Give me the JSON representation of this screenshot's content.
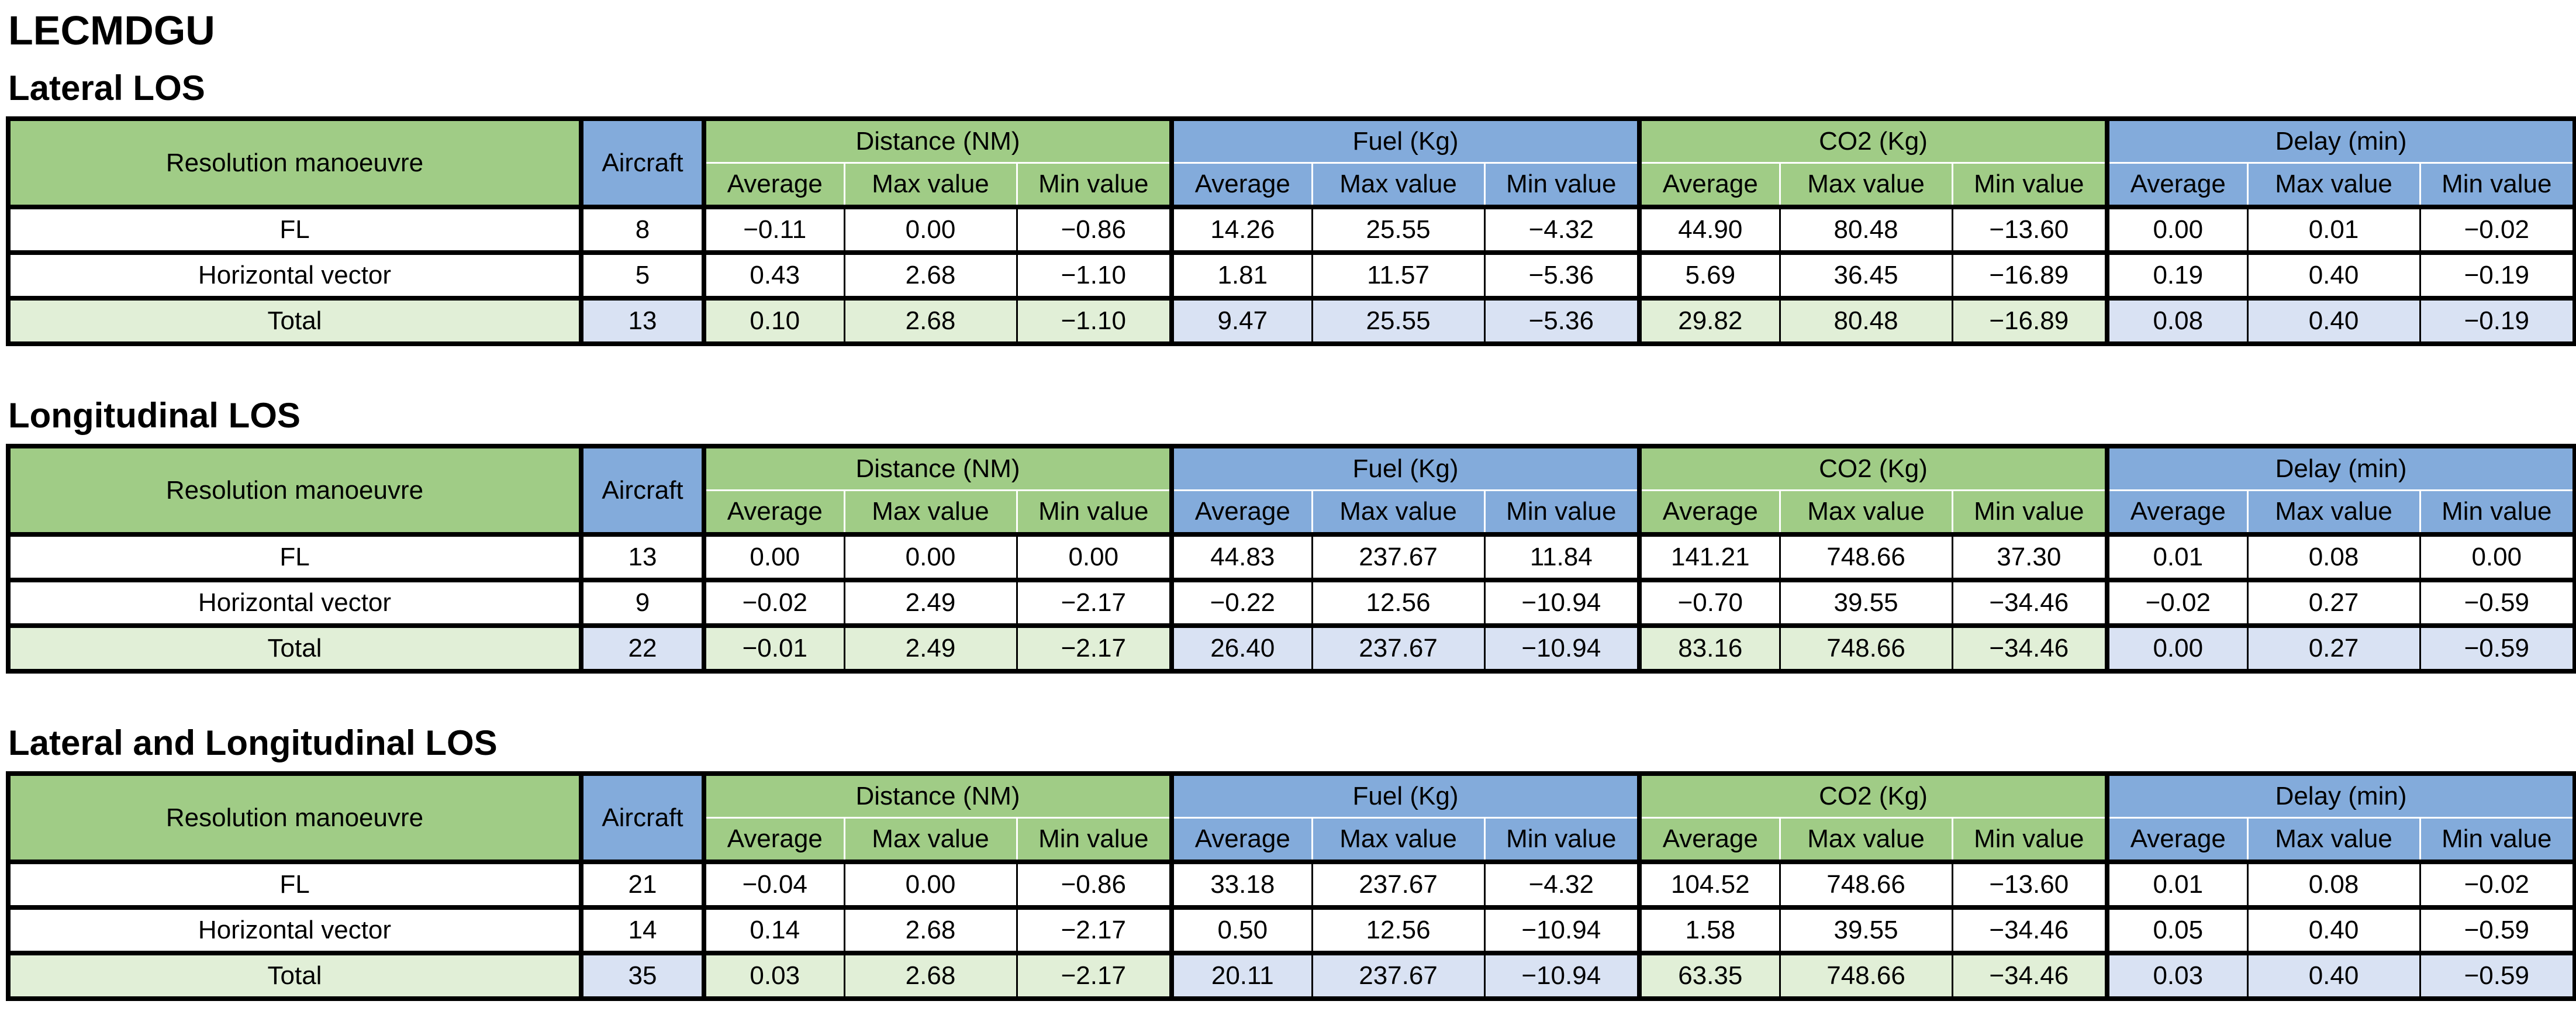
{
  "page_title": "LECMDGU",
  "colors": {
    "header_green": "#a0cc86",
    "header_blue": "#83abdb",
    "total_row_green": "#e1efd7",
    "total_row_blue": "#d9e2f3",
    "border": "#000000",
    "background": "#ffffff"
  },
  "headers": {
    "resolution_label": "Resolution manoeuvre",
    "aircraft_label": "Aircraft",
    "sub_columns": [
      "Average",
      "Max value",
      "Min value"
    ],
    "groups": [
      {
        "label": "Distance (NM)",
        "tone": "green"
      },
      {
        "label": "Fuel (Kg)",
        "tone": "blue"
      },
      {
        "label": "CO2 (Kg)",
        "tone": "green"
      },
      {
        "label": "Delay (min)",
        "tone": "blue"
      }
    ]
  },
  "tables": [
    {
      "section_title": "Lateral LOS",
      "rows": [
        {
          "label": "FL",
          "aircraft": "8",
          "is_total": false,
          "values": [
            [
              "−0.11",
              "0.00",
              "−0.86"
            ],
            [
              "14.26",
              "25.55",
              "−4.32"
            ],
            [
              "44.90",
              "80.48",
              "−13.60"
            ],
            [
              "0.00",
              "0.01",
              "−0.02"
            ]
          ]
        },
        {
          "label": "Horizontal vector",
          "aircraft": "5",
          "is_total": false,
          "values": [
            [
              "0.43",
              "2.68",
              "−1.10"
            ],
            [
              "1.81",
              "11.57",
              "−5.36"
            ],
            [
              "5.69",
              "36.45",
              "−16.89"
            ],
            [
              "0.19",
              "0.40",
              "−0.19"
            ]
          ]
        },
        {
          "label": "Total",
          "aircraft": "13",
          "is_total": true,
          "values": [
            [
              "0.10",
              "2.68",
              "−1.10"
            ],
            [
              "9.47",
              "25.55",
              "−5.36"
            ],
            [
              "29.82",
              "80.48",
              "−16.89"
            ],
            [
              "0.08",
              "0.40",
              "−0.19"
            ]
          ]
        }
      ]
    },
    {
      "section_title": "Longitudinal LOS",
      "rows": [
        {
          "label": "FL",
          "aircraft": "13",
          "is_total": false,
          "values": [
            [
              "0.00",
              "0.00",
              "0.00"
            ],
            [
              "44.83",
              "237.67",
              "11.84"
            ],
            [
              "141.21",
              "748.66",
              "37.30"
            ],
            [
              "0.01",
              "0.08",
              "0.00"
            ]
          ]
        },
        {
          "label": "Horizontal vector",
          "aircraft": "9",
          "is_total": false,
          "values": [
            [
              "−0.02",
              "2.49",
              "−2.17"
            ],
            [
              "−0.22",
              "12.56",
              "−10.94"
            ],
            [
              "−0.70",
              "39.55",
              "−34.46"
            ],
            [
              "−0.02",
              "0.27",
              "−0.59"
            ]
          ]
        },
        {
          "label": "Total",
          "aircraft": "22",
          "is_total": true,
          "values": [
            [
              "−0.01",
              "2.49",
              "−2.17"
            ],
            [
              "26.40",
              "237.67",
              "−10.94"
            ],
            [
              "83.16",
              "748.66",
              "−34.46"
            ],
            [
              "0.00",
              "0.27",
              "−0.59"
            ]
          ]
        }
      ]
    },
    {
      "section_title": "Lateral and Longitudinal LOS",
      "rows": [
        {
          "label": "FL",
          "aircraft": "21",
          "is_total": false,
          "values": [
            [
              "−0.04",
              "0.00",
              "−0.86"
            ],
            [
              "33.18",
              "237.67",
              "−4.32"
            ],
            [
              "104.52",
              "748.66",
              "−13.60"
            ],
            [
              "0.01",
              "0.08",
              "−0.02"
            ]
          ]
        },
        {
          "label": "Horizontal vector",
          "aircraft": "14",
          "is_total": false,
          "values": [
            [
              "0.14",
              "2.68",
              "−2.17"
            ],
            [
              "0.50",
              "12.56",
              "−10.94"
            ],
            [
              "1.58",
              "39.55",
              "−34.46"
            ],
            [
              "0.05",
              "0.40",
              "−0.59"
            ]
          ]
        },
        {
          "label": "Total",
          "aircraft": "35",
          "is_total": true,
          "values": [
            [
              "0.03",
              "2.68",
              "−2.17"
            ],
            [
              "20.11",
              "237.67",
              "−10.94"
            ],
            [
              "63.35",
              "748.66",
              "−34.46"
            ],
            [
              "0.03",
              "0.40",
              "−0.59"
            ]
          ]
        }
      ]
    }
  ]
}
